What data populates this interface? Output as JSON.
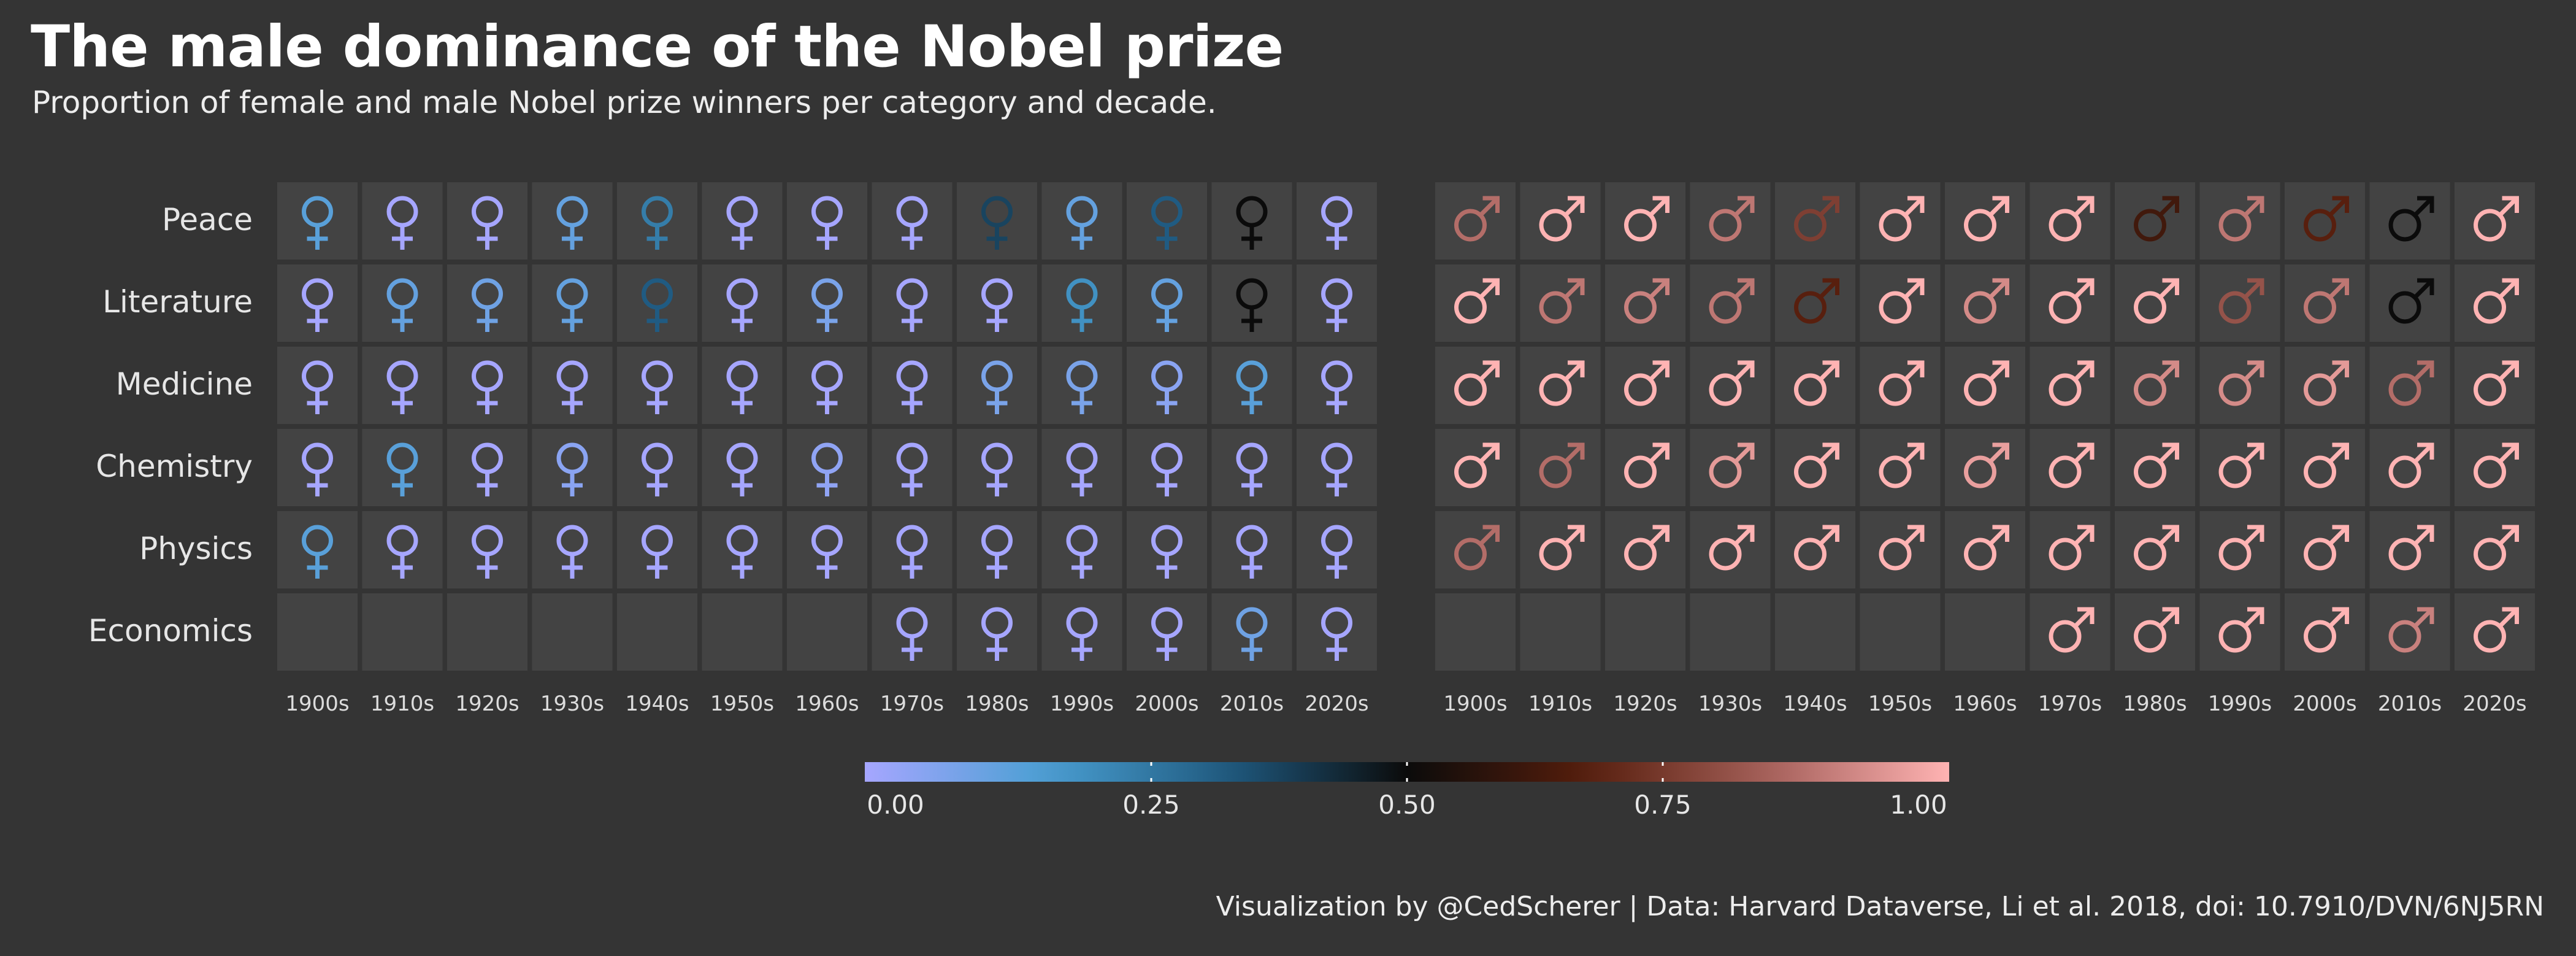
{
  "title": "The male dominance of the Nobel prize",
  "subtitle": "Proportion of female and male Nobel prize winners per category and decade.",
  "caption": "Visualization by @CedScherer  |  Data: Harvard Dataverse, Li et al. 2018, doi: 10.7910/DVN/6NJ5RN",
  "colors": {
    "background": "#343434",
    "tile": "#434343",
    "scale": [
      "#a6a6ff",
      "#4a9fd2",
      "#1f5a80",
      "#0b0b0b",
      "#561e0c",
      "#a5605a",
      "#ffb3b3"
    ]
  },
  "icons": {
    "female": "female-symbol-icon",
    "male": "male-symbol-icon"
  },
  "chart_data": {
    "type": "heatmap",
    "title": "The male dominance of the Nobel prize",
    "subtitle": "Proportion of female and male Nobel prize winners per category and decade.",
    "categories": [
      "Peace",
      "Literature",
      "Medicine",
      "Chemistry",
      "Physics",
      "Economics"
    ],
    "decades": [
      "1900s",
      "1910s",
      "1920s",
      "1930s",
      "1940s",
      "1950s",
      "1960s",
      "1970s",
      "1980s",
      "1990s",
      "2000s",
      "2010s",
      "2020s"
    ],
    "panels": [
      "female",
      "male"
    ],
    "male_share": [
      [
        0.86,
        1.0,
        1.0,
        0.88,
        0.75,
        1.0,
        1.0,
        1.0,
        0.62,
        0.88,
        0.67,
        0.5,
        1.0
      ],
      [
        1.0,
        0.88,
        0.9,
        0.88,
        0.67,
        1.0,
        0.92,
        1.0,
        1.0,
        0.8,
        0.88,
        0.5,
        1.0
      ],
      [
        1.0,
        1.0,
        1.0,
        1.0,
        1.0,
        1.0,
        1.0,
        1.0,
        0.92,
        0.92,
        0.95,
        0.86,
        1.0
      ],
      [
        1.0,
        0.86,
        1.0,
        0.95,
        1.0,
        1.0,
        0.96,
        1.0,
        1.0,
        1.0,
        1.0,
        1.0,
        1.0
      ],
      [
        0.86,
        1.0,
        1.0,
        1.0,
        1.0,
        1.0,
        1.0,
        1.0,
        1.0,
        1.0,
        1.0,
        1.0,
        1.0
      ],
      [
        null,
        null,
        null,
        null,
        null,
        null,
        null,
        1.0,
        1.0,
        1.0,
        1.0,
        0.9,
        1.0
      ]
    ],
    "legend": {
      "range": [
        0,
        1
      ],
      "ticks": [
        "0.00",
        "0.25",
        "0.50",
        "0.75",
        "1.00"
      ]
    }
  }
}
